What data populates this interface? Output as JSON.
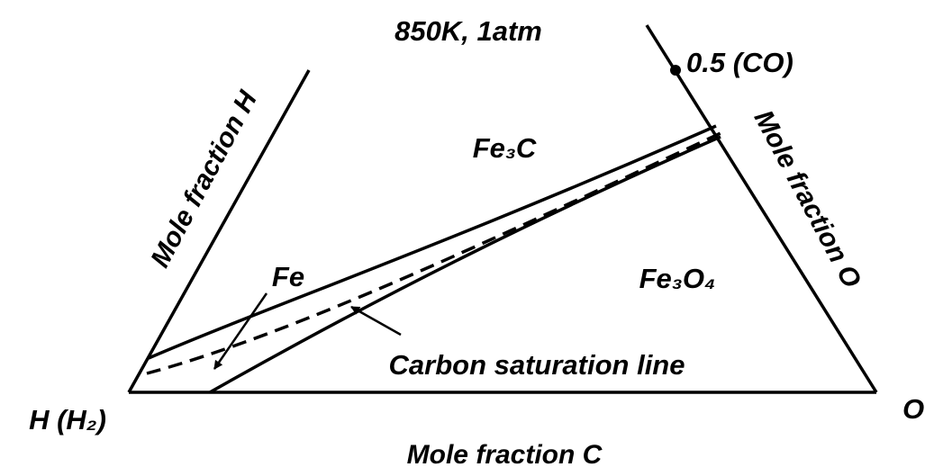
{
  "title": "850K, 1atm",
  "axes": {
    "h": "Mole fraction H",
    "o": "Mole fraction O",
    "c": "Mole fraction C"
  },
  "corners": {
    "left": "H (H₂)",
    "right": "O"
  },
  "point": "0.5 (CO)",
  "regions": {
    "fe3c": "Fe₃C",
    "fe": "Fe",
    "fe3o4": "Fe₃O₄"
  },
  "annotation": "Carbon saturation line"
}
